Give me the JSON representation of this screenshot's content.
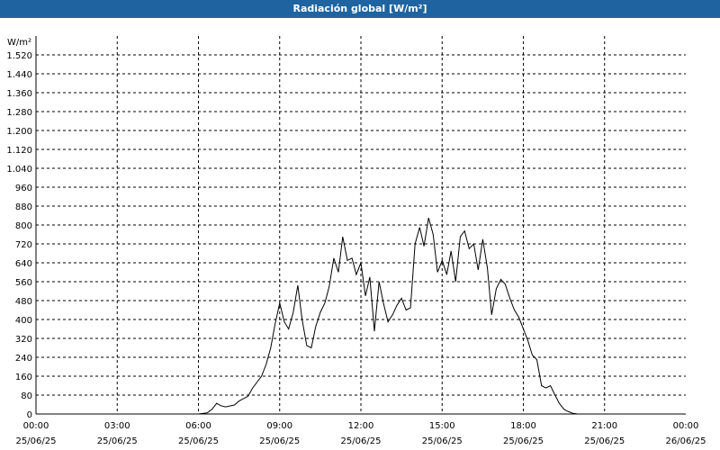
{
  "window": {
    "title": "Radiación global [W/m²]"
  },
  "colors": {
    "title_bar": "#1f64a0",
    "line": "#000000",
    "grid": "#000000"
  },
  "chart_data": {
    "type": "line",
    "title": "Radiación global [W/m²]",
    "ylabel": "W/m²",
    "xlabel": "",
    "ylim": [
      0,
      1600
    ],
    "xlim_hours": [
      0,
      24
    ],
    "grid": true,
    "y_ticks": [
      {
        "value": 0,
        "label": "0"
      },
      {
        "value": 80,
        "label": "80"
      },
      {
        "value": 160,
        "label": "160"
      },
      {
        "value": 240,
        "label": "240"
      },
      {
        "value": 320,
        "label": "320"
      },
      {
        "value": 400,
        "label": "400"
      },
      {
        "value": 480,
        "label": "480"
      },
      {
        "value": 560,
        "label": "560"
      },
      {
        "value": 640,
        "label": "640"
      },
      {
        "value": 720,
        "label": "720"
      },
      {
        "value": 800,
        "label": "800"
      },
      {
        "value": 880,
        "label": "880"
      },
      {
        "value": 960,
        "label": "960"
      },
      {
        "value": 1040,
        "label": "1.040"
      },
      {
        "value": 1120,
        "label": "1.120"
      },
      {
        "value": 1200,
        "label": "1.200"
      },
      {
        "value": 1280,
        "label": "1.280"
      },
      {
        "value": 1360,
        "label": "1.360"
      },
      {
        "value": 1440,
        "label": "1.440"
      },
      {
        "value": 1520,
        "label": "1.520"
      }
    ],
    "x_ticks": [
      {
        "hour": 0,
        "time": "00:00",
        "date": "25/06/25"
      },
      {
        "hour": 3,
        "time": "03:00",
        "date": "25/06/25"
      },
      {
        "hour": 6,
        "time": "06:00",
        "date": "25/06/25"
      },
      {
        "hour": 9,
        "time": "09:00",
        "date": "25/06/25"
      },
      {
        "hour": 12,
        "time": "12:00",
        "date": "25/06/25"
      },
      {
        "hour": 15,
        "time": "15:00",
        "date": "25/06/25"
      },
      {
        "hour": 18,
        "time": "18:00",
        "date": "25/06/25"
      },
      {
        "hour": 21,
        "time": "21:00",
        "date": "25/06/25"
      },
      {
        "hour": 24,
        "time": "00:00",
        "date": "26/06/25"
      }
    ],
    "series": [
      {
        "points": [
          [
            0,
            0
          ],
          [
            6.0,
            0
          ],
          [
            6.33,
            5
          ],
          [
            6.5,
            20
          ],
          [
            6.67,
            45
          ],
          [
            6.83,
            35
          ],
          [
            7.0,
            30
          ],
          [
            7.33,
            38
          ],
          [
            7.5,
            55
          ],
          [
            7.83,
            75
          ],
          [
            8.0,
            110
          ],
          [
            8.33,
            160
          ],
          [
            8.5,
            210
          ],
          [
            8.67,
            280
          ],
          [
            8.83,
            380
          ],
          [
            9.0,
            470
          ],
          [
            9.17,
            390
          ],
          [
            9.33,
            360
          ],
          [
            9.5,
            430
          ],
          [
            9.67,
            545
          ],
          [
            9.83,
            400
          ],
          [
            10.0,
            290
          ],
          [
            10.17,
            280
          ],
          [
            10.33,
            370
          ],
          [
            10.5,
            430
          ],
          [
            10.67,
            470
          ],
          [
            10.83,
            540
          ],
          [
            11.0,
            660
          ],
          [
            11.17,
            600
          ],
          [
            11.33,
            750
          ],
          [
            11.5,
            650
          ],
          [
            11.67,
            660
          ],
          [
            11.83,
            590
          ],
          [
            12.0,
            640
          ],
          [
            12.17,
            500
          ],
          [
            12.33,
            580
          ],
          [
            12.5,
            350
          ],
          [
            12.67,
            560
          ],
          [
            12.83,
            470
          ],
          [
            13.0,
            390
          ],
          [
            13.17,
            420
          ],
          [
            13.33,
            460
          ],
          [
            13.5,
            490
          ],
          [
            13.67,
            440
          ],
          [
            13.83,
            450
          ],
          [
            14.0,
            720
          ],
          [
            14.17,
            790
          ],
          [
            14.33,
            710
          ],
          [
            14.5,
            830
          ],
          [
            14.67,
            760
          ],
          [
            14.83,
            600
          ],
          [
            15.0,
            650
          ],
          [
            15.17,
            590
          ],
          [
            15.33,
            690
          ],
          [
            15.5,
            560
          ],
          [
            15.67,
            750
          ],
          [
            15.83,
            775
          ],
          [
            16.0,
            700
          ],
          [
            16.17,
            720
          ],
          [
            16.33,
            610
          ],
          [
            16.5,
            740
          ],
          [
            16.67,
            620
          ],
          [
            16.83,
            420
          ],
          [
            17.0,
            530
          ],
          [
            17.17,
            570
          ],
          [
            17.33,
            550
          ],
          [
            17.5,
            490
          ],
          [
            17.67,
            440
          ],
          [
            17.83,
            410
          ],
          [
            18.0,
            360
          ],
          [
            18.17,
            310
          ],
          [
            18.33,
            250
          ],
          [
            18.5,
            230
          ],
          [
            18.67,
            120
          ],
          [
            18.83,
            110
          ],
          [
            19.0,
            120
          ],
          [
            19.17,
            80
          ],
          [
            19.33,
            45
          ],
          [
            19.5,
            20
          ],
          [
            19.67,
            10
          ],
          [
            19.83,
            3
          ],
          [
            20.0,
            0
          ],
          [
            24,
            0
          ]
        ]
      }
    ]
  }
}
